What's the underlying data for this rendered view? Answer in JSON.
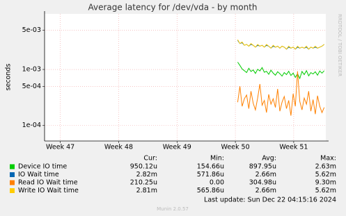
{
  "chart_data": {
    "type": "line",
    "title": "Average latency for /dev/vda - by month",
    "y_label": "seconds",
    "yscale": "log",
    "ylim": [
      5.3e-05,
      0.0098
    ],
    "yticks": [
      {
        "value": 0.005,
        "label": "5e-03"
      },
      {
        "value": 0.001,
        "label": "1e-03"
      },
      {
        "value": 0.0005,
        "label": "5e-04"
      },
      {
        "value": 0.0001,
        "label": "1e-04"
      }
    ],
    "xlim": [
      46.73,
      51.55
    ],
    "xticks": [
      {
        "value": 47,
        "label": "Week 47"
      },
      {
        "value": 48,
        "label": "Week 48"
      },
      {
        "value": 49,
        "label": "Week 49"
      },
      {
        "value": 50,
        "label": "Week 50"
      },
      {
        "value": 51,
        "label": "Week 51"
      }
    ],
    "grid": true,
    "x": [
      50.04,
      50.078,
      50.116,
      50.154,
      50.192,
      50.23,
      50.268,
      50.306,
      50.344,
      50.382,
      50.42,
      50.458,
      50.496,
      50.534,
      50.572,
      50.61,
      50.648,
      50.686,
      50.724,
      50.762,
      50.8,
      50.838,
      50.876,
      50.914,
      50.952,
      50.99,
      51.028,
      51.066,
      51.104,
      51.142,
      51.18,
      51.218,
      51.256,
      51.294,
      51.332,
      51.37,
      51.408,
      51.446,
      51.484,
      51.522
    ],
    "series": [
      {
        "name": "Device IO time",
        "color": "#00cc00",
        "values": [
          0.00135,
          0.00118,
          0.00102,
          0.00095,
          0.00088,
          0.00105,
          0.00092,
          0.00098,
          0.00085,
          0.00101,
          0.00094,
          0.00108,
          0.00089,
          0.00093,
          0.00082,
          0.00097,
          0.00086,
          0.00079,
          0.00091,
          0.00084,
          0.00076,
          0.00088,
          0.00081,
          0.00093,
          0.00078,
          0.00086,
          0.00072,
          0.00084,
          0.00069,
          0.00092,
          0.00081,
          0.00095,
          0.00077,
          0.00088,
          0.00083,
          0.00091,
          0.00079,
          0.00094,
          0.00086,
          0.00095
        ]
      },
      {
        "name": "IO Wait time",
        "color": "#0066b3",
        "values": [
          0.0033,
          0.0029,
          0.003,
          0.0027,
          0.0028,
          0.0026,
          0.0028,
          0.0027,
          0.0025,
          0.0027,
          0.0026,
          0.0027,
          0.0025,
          0.0027,
          0.0026,
          0.0024,
          0.0026,
          0.0025,
          0.0026,
          0.0024,
          0.0026,
          0.0025,
          0.0023,
          0.0025,
          0.0024,
          0.0025,
          0.0023,
          0.0025,
          0.0024,
          0.0025,
          0.0024,
          0.0025,
          0.0023,
          0.0025,
          0.0024,
          0.0025,
          0.0024,
          0.0025,
          0.0026,
          0.0028
        ]
      },
      {
        "name": "Read IO Wait time",
        "color": "#ff8000",
        "values": [
          0.00026,
          0.0005,
          0.00022,
          0.0003,
          0.00035,
          0.0002,
          0.00041,
          0.00025,
          0.00019,
          0.00031,
          0.00055,
          0.00023,
          0.00028,
          0.00017,
          0.00036,
          0.00024,
          0.0003,
          0.00021,
          0.00045,
          0.00018,
          0.00026,
          0.00033,
          0.0002,
          0.00028,
          0.00015,
          0.00037,
          0.00022,
          0.00093,
          0.00027,
          0.00019,
          0.00031,
          0.00024,
          0.00041,
          0.00018,
          0.00029,
          0.00016,
          0.00034,
          0.00022,
          0.00017,
          0.00021
        ]
      },
      {
        "name": "Write IO Wait time",
        "color": "#ffcc00",
        "values": [
          0.0034,
          0.0029,
          0.0031,
          0.0027,
          0.0028,
          0.0026,
          0.0029,
          0.0027,
          0.0025,
          0.0028,
          0.0026,
          0.0027,
          0.0025,
          0.0028,
          0.0026,
          0.0024,
          0.0027,
          0.0025,
          0.0026,
          0.0024,
          0.0026,
          0.0025,
          0.0023,
          0.0026,
          0.0024,
          0.0025,
          0.0023,
          0.0026,
          0.0024,
          0.0025,
          0.0024,
          0.0026,
          0.0023,
          0.0025,
          0.0024,
          0.0026,
          0.0024,
          0.0025,
          0.0026,
          0.0028
        ]
      }
    ]
  },
  "legend_table": {
    "headers": [
      "Cur:",
      "Min:",
      "Avg:",
      "Max:"
    ],
    "rows": [
      [
        "950.12u",
        "154.66u",
        "897.95u",
        "2.63m"
      ],
      [
        "2.82m",
        "571.86u",
        "2.66m",
        "5.62m"
      ],
      [
        "210.25u",
        "0.00",
        "304.98u",
        "9.30m"
      ],
      [
        "2.81m",
        "565.86u",
        "2.66m",
        "5.62m"
      ]
    ]
  },
  "last_update": "Last update: Sun Dec 22 04:15:16 2024",
  "version": "Munin 2.0.57",
  "watermark": "RRDTOOL / TOBI OETIKER"
}
